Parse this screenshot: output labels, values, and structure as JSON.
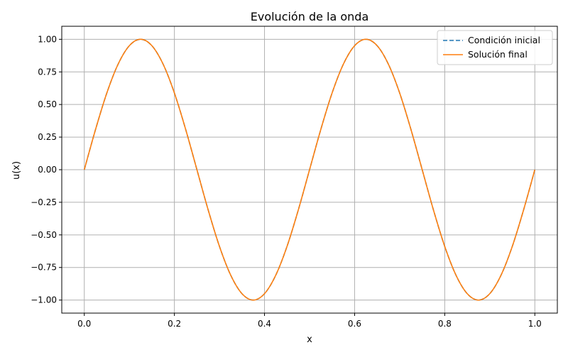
{
  "chart_data": {
    "type": "line",
    "title": "Evolución de la onda",
    "xlabel": "x",
    "ylabel": "u(x)",
    "xlim": [
      -0.05,
      1.05
    ],
    "ylim": [
      -1.1,
      1.1
    ],
    "xticks": [
      0.0,
      0.2,
      0.4,
      0.6,
      0.8,
      1.0
    ],
    "xtick_labels": [
      "0.0",
      "0.2",
      "0.4",
      "0.6",
      "0.8",
      "1.0"
    ],
    "yticks": [
      -1.0,
      -0.75,
      -0.5,
      -0.25,
      0.0,
      0.25,
      0.5,
      0.75,
      1.0
    ],
    "ytick_labels": [
      "−1.00",
      "−0.75",
      "−0.50",
      "−0.25",
      "0.00",
      "0.25",
      "0.50",
      "0.75",
      "1.00"
    ],
    "grid": true,
    "legend_position": "top-right",
    "x": [
      0.0,
      0.025,
      0.05,
      0.075,
      0.1,
      0.125,
      0.15,
      0.175,
      0.2,
      0.225,
      0.25,
      0.275,
      0.3,
      0.325,
      0.35,
      0.375,
      0.4,
      0.425,
      0.45,
      0.475,
      0.5,
      0.525,
      0.55,
      0.575,
      0.6,
      0.625,
      0.65,
      0.675,
      0.7,
      0.725,
      0.75,
      0.775,
      0.8,
      0.825,
      0.85,
      0.875,
      0.9,
      0.925,
      0.95,
      0.975,
      1.0
    ],
    "series": [
      {
        "name": "Condición inicial",
        "color": "#1f77b4",
        "style": "dashed",
        "values": [
          0.0,
          0.309,
          0.588,
          0.809,
          0.951,
          1.0,
          0.951,
          0.809,
          0.588,
          0.309,
          0.0,
          -0.309,
          -0.588,
          -0.809,
          -0.951,
          -1.0,
          -0.951,
          -0.809,
          -0.588,
          -0.309,
          0.0,
          0.309,
          0.588,
          0.809,
          0.951,
          1.0,
          0.951,
          0.809,
          0.588,
          0.309,
          0.0,
          -0.309,
          -0.588,
          -0.809,
          -0.951,
          -1.0,
          -0.951,
          -0.809,
          -0.588,
          -0.309,
          0.0
        ]
      },
      {
        "name": "Solución final",
        "color": "#ff7f0e",
        "style": "solid",
        "values": [
          0.0,
          0.309,
          0.588,
          0.809,
          0.951,
          1.0,
          0.951,
          0.809,
          0.588,
          0.309,
          0.0,
          -0.309,
          -0.588,
          -0.809,
          -0.951,
          -1.0,
          -0.951,
          -0.809,
          -0.588,
          -0.309,
          0.0,
          0.309,
          0.588,
          0.809,
          0.951,
          1.0,
          0.951,
          0.809,
          0.588,
          0.309,
          0.0,
          -0.309,
          -0.588,
          -0.809,
          -0.951,
          -1.0,
          -0.951,
          -0.809,
          -0.588,
          -0.309,
          0.0
        ]
      }
    ]
  }
}
